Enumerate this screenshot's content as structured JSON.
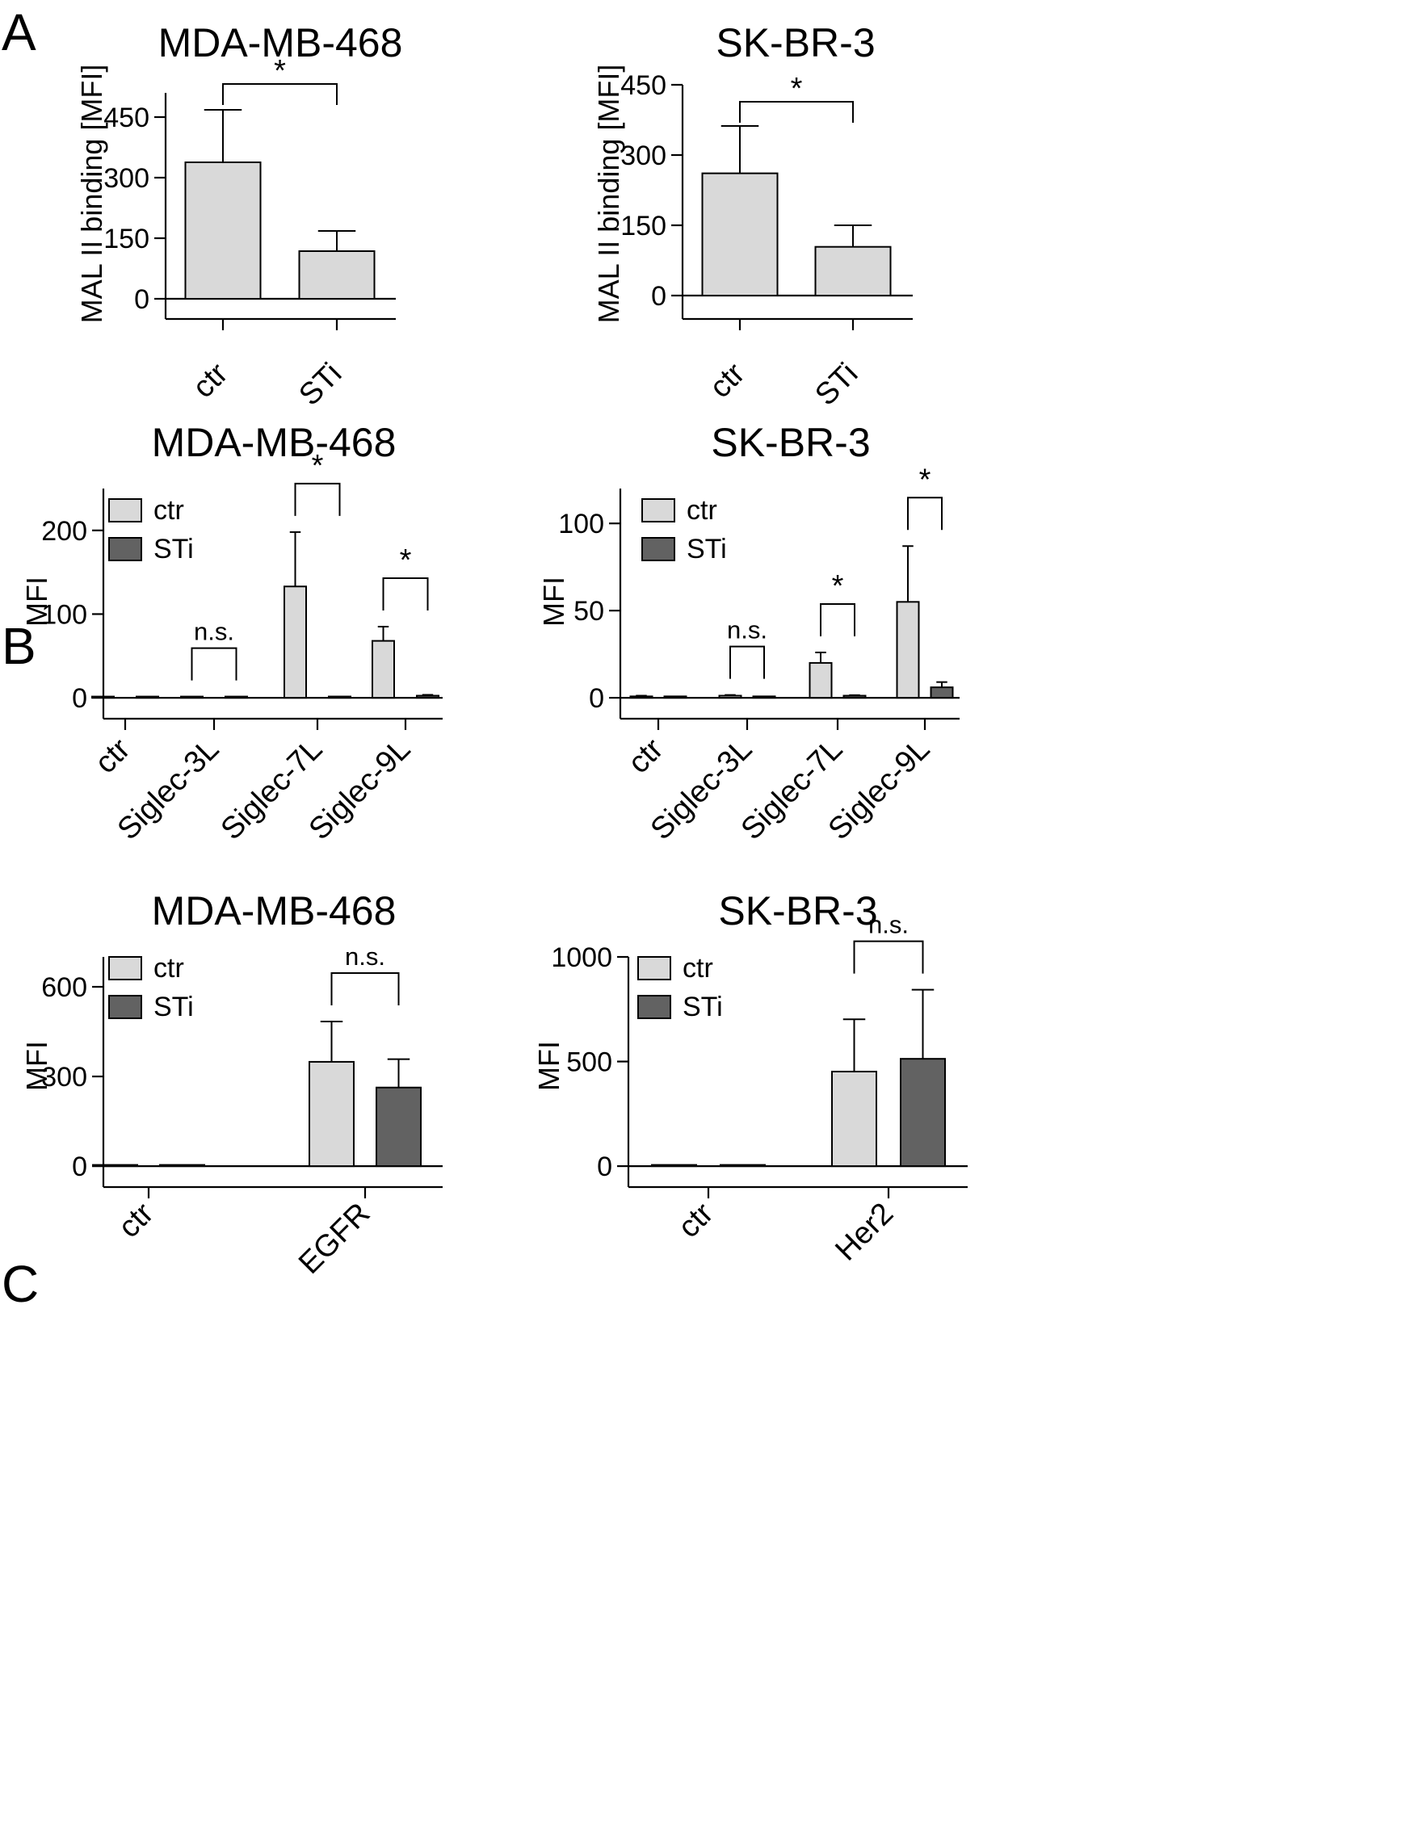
{
  "figure": {
    "panel_labels": [
      "A",
      "B",
      "C"
    ]
  },
  "chart_data": [
    {
      "id": "A1",
      "type": "bar",
      "panel": "A",
      "title": "MDA-MB-468",
      "ylabel": "MAL II binding [MFI]",
      "categories": [
        "ctr",
        "STi"
      ],
      "yticks": [
        0,
        150,
        300,
        450
      ],
      "ylim": [
        -50,
        510
      ],
      "series": [
        {
          "name": "value",
          "values": [
            338,
            118
          ],
          "errors": [
            130,
            50
          ]
        }
      ],
      "comparisons": [
        {
          "from": 0,
          "to": 1,
          "label": "*"
        }
      ]
    },
    {
      "id": "A2",
      "type": "bar",
      "panel": "A",
      "title": "SK-BR-3",
      "ylabel": "MAL II binding [MFI]",
      "categories": [
        "ctr",
        "STi"
      ],
      "yticks": [
        0,
        150,
        300,
        450
      ],
      "ylim": [
        -50,
        450
      ],
      "series": [
        {
          "name": "value",
          "values": [
            261,
            104
          ],
          "errors": [
            101,
            46
          ]
        }
      ],
      "comparisons": [
        {
          "from": 0,
          "to": 1,
          "label": "*"
        }
      ]
    },
    {
      "id": "B1",
      "type": "bar",
      "panel": "B",
      "title": "MDA-MB-468",
      "ylabel": "MFI",
      "categories": [
        "ctr",
        "Siglec-3L",
        "Siglec-7L",
        "Siglec-9L"
      ],
      "yticks": [
        0,
        100,
        200
      ],
      "ylim": [
        -25,
        250
      ],
      "series": [
        {
          "name": "ctr",
          "values": [
            0.5,
            1,
            133,
            68
          ],
          "errors": [
            0,
            0,
            65,
            17
          ]
        },
        {
          "name": "STi",
          "values": [
            0.5,
            0.5,
            1.5,
            2.5
          ],
          "errors": [
            0,
            0,
            0,
            1
          ]
        }
      ],
      "comparisons": [
        {
          "category": 1,
          "label": "n.s."
        },
        {
          "category": 2,
          "label": "*"
        },
        {
          "category": 3,
          "label": "*"
        }
      ]
    },
    {
      "id": "B2",
      "type": "bar",
      "panel": "B",
      "title": "SK-BR-3",
      "ylabel": "MFI",
      "categories": [
        "ctr",
        "Siglec-3L",
        "Siglec-7L",
        "Siglec-9L"
      ],
      "yticks": [
        0,
        50,
        100
      ],
      "ylim": [
        -12,
        120
      ],
      "series": [
        {
          "name": "ctr",
          "values": [
            0.8,
            1.2,
            20,
            55
          ],
          "errors": [
            0.4,
            0.4,
            6,
            32
          ]
        },
        {
          "name": "STi",
          "values": [
            0.8,
            0.8,
            1.2,
            6
          ],
          "errors": [
            0,
            0,
            0.3,
            3
          ]
        }
      ],
      "comparisons": [
        {
          "category": 1,
          "label": "n.s."
        },
        {
          "category": 2,
          "label": "*"
        },
        {
          "category": 3,
          "label": "*"
        }
      ]
    },
    {
      "id": "C1",
      "type": "bar",
      "panel": "C",
      "title": "MDA-MB-468",
      "ylabel": "MFI",
      "categories": [
        "ctr",
        "EGFR"
      ],
      "yticks": [
        0,
        300,
        600
      ],
      "ylim": [
        -70,
        700
      ],
      "series": [
        {
          "name": "ctr",
          "values": [
            1,
            349
          ],
          "errors": [
            0,
            135
          ]
        },
        {
          "name": "STi",
          "values": [
            0,
            263
          ],
          "errors": [
            0,
            95
          ]
        }
      ],
      "comparisons": [
        {
          "category": 1,
          "label": "n.s."
        }
      ]
    },
    {
      "id": "C2",
      "type": "bar",
      "panel": "C",
      "title": "SK-BR-3",
      "ylabel": "MFI",
      "categories": [
        "ctr",
        "Her2"
      ],
      "yticks": [
        0,
        500,
        1000
      ],
      "ylim": [
        -100,
        1000
      ],
      "series": [
        {
          "name": "ctr",
          "values": [
            0,
            452
          ],
          "errors": [
            0,
            250
          ]
        },
        {
          "name": "STi",
          "values": [
            0,
            513
          ],
          "errors": [
            0,
            330
          ]
        }
      ],
      "comparisons": [
        {
          "category": 1,
          "label": "n.s."
        }
      ]
    }
  ],
  "colors": {
    "ctr": "#d9d9d9",
    "STi": "#626262",
    "single": "#d9d9d9"
  }
}
